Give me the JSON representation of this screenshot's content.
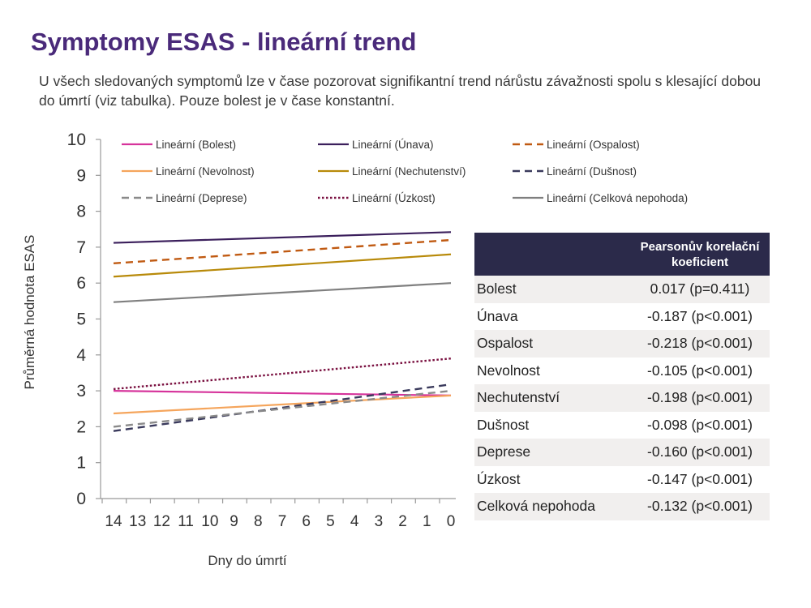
{
  "title": "Symptomy ESAS - lineární trend",
  "subtitle": "U všech sledovaných symptomů lze v čase pozorovat signifikantní trend nárůstu závažnosti spolu s klesající dobou do úmrtí (viz tabulka). Pouze bolest je v čase konstantní.",
  "chart_data": {
    "type": "line",
    "xlabel": "Dny do úmrtí",
    "ylabel": "Průměrná hodnota ESAS",
    "x": [
      14,
      13,
      12,
      11,
      10,
      9,
      8,
      7,
      6,
      5,
      4,
      3,
      2,
      1,
      0
    ],
    "x_reversed": true,
    "ylim": [
      0,
      10
    ],
    "yticks": [
      0,
      1,
      2,
      3,
      4,
      5,
      6,
      7,
      8,
      9,
      10
    ],
    "grid": false,
    "legend_position": "top",
    "series": [
      {
        "name": "Lineární (Bolest)",
        "color": "#d6339b",
        "dash": "solid",
        "x": [
          14,
          0
        ],
        "y": [
          3.0,
          2.87
        ]
      },
      {
        "name": "Lineární (Únava)",
        "color": "#3b1f5c",
        "dash": "solid",
        "x": [
          14,
          0
        ],
        "y": [
          7.12,
          7.42
        ]
      },
      {
        "name": "Lineární (Ospalost)",
        "color": "#c05a12",
        "dash": "dashed",
        "x": [
          14,
          0
        ],
        "y": [
          6.55,
          7.2
        ]
      },
      {
        "name": "Lineární (Nevolnost)",
        "color": "#f5a55c",
        "dash": "solid",
        "x": [
          14,
          0
        ],
        "y": [
          2.37,
          2.87
        ]
      },
      {
        "name": "Lineární (Nechutenství)",
        "color": "#b88a0a",
        "dash": "solid",
        "x": [
          14,
          0
        ],
        "y": [
          6.18,
          6.8
        ]
      },
      {
        "name": "Lineární (Dušnost)",
        "color": "#3a3a5c",
        "dash": "dashed",
        "x": [
          14,
          0
        ],
        "y": [
          1.88,
          3.18
        ]
      },
      {
        "name": "Lineární (Deprese)",
        "color": "#8a8a8a",
        "dash": "dashed",
        "x": [
          14,
          0
        ],
        "y": [
          2.0,
          3.0
        ]
      },
      {
        "name": "Lineární (Úzkost)",
        "color": "#7a1040",
        "dash": "dotted",
        "x": [
          14,
          0
        ],
        "y": [
          3.05,
          3.9
        ]
      },
      {
        "name": "Lineární (Celková nepohoda)",
        "color": "#7f7f7f",
        "dash": "solid",
        "x": [
          14,
          0
        ],
        "y": [
          5.47,
          6.0
        ]
      }
    ]
  },
  "table": {
    "header": [
      "",
      "Pearsonův korelační koeficient"
    ],
    "rows": [
      {
        "symptom": "Bolest",
        "value": "0.017 (p=0.411)"
      },
      {
        "symptom": "Únava",
        "value": "-0.187 (p<0.001)"
      },
      {
        "symptom": "Ospalost",
        "value": "-0.218 (p<0.001)"
      },
      {
        "symptom": "Nevolnost",
        "value": "-0.105 (p<0.001)"
      },
      {
        "symptom": "Nechutenství",
        "value": "-0.198 (p<0.001)"
      },
      {
        "symptom": "Dušnost",
        "value": "-0.098 (p<0.001)"
      },
      {
        "symptom": "Deprese",
        "value": "-0.160 (p<0.001)"
      },
      {
        "symptom": "Úzkost",
        "value": "-0.147 (p<0.001)"
      },
      {
        "symptom": "Celková nepohoda",
        "value": "-0.132 (p<0.001)"
      }
    ]
  }
}
